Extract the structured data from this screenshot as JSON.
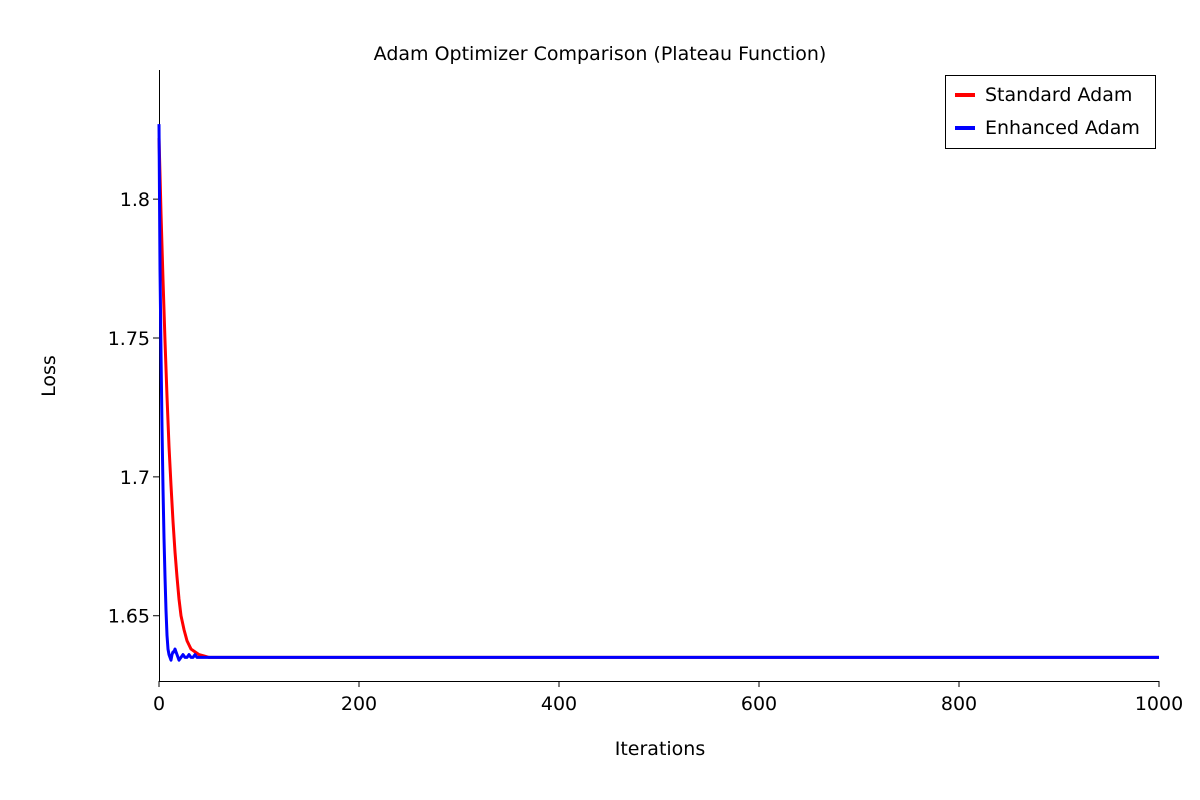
{
  "chart_data": {
    "type": "line",
    "title": "Adam Optimizer Comparison (Plateau Function)",
    "xlabel": "Iterations",
    "ylabel": "Loss",
    "xlim": [
      0,
      1000
    ],
    "ylim": [
      1.6265,
      1.8465
    ],
    "xticks": [
      0,
      200,
      400,
      600,
      800,
      1000
    ],
    "xtick_labels": [
      "0",
      "200",
      "400",
      "600",
      "800",
      "1000"
    ],
    "yticks": [
      1.65,
      1.7,
      1.75,
      1.8
    ],
    "ytick_labels": [
      "1.65",
      "1.7",
      "1.75",
      "1.8"
    ],
    "grid": false,
    "legend_position": "top-right",
    "series": [
      {
        "name": "Standard Adam",
        "color": "#ff0000",
        "x": [
          0,
          1,
          2,
          3,
          4,
          5,
          6,
          7,
          8,
          9,
          10,
          12,
          14,
          16,
          18,
          20,
          22,
          25,
          28,
          32,
          36,
          40,
          45,
          50,
          60,
          80,
          100,
          200,
          400,
          600,
          800,
          1000
        ],
        "y": [
          1.822,
          1.809,
          1.795,
          1.783,
          1.771,
          1.76,
          1.749,
          1.739,
          1.729,
          1.72,
          1.711,
          1.697,
          1.684,
          1.673,
          1.664,
          1.656,
          1.65,
          1.645,
          1.641,
          1.638,
          1.637,
          1.636,
          1.6355,
          1.635,
          1.635,
          1.635,
          1.635,
          1.635,
          1.635,
          1.635,
          1.635,
          1.635
        ]
      },
      {
        "name": "Enhanced Adam",
        "color": "#0000ff",
        "x": [
          0,
          1,
          2,
          3,
          4,
          5,
          6,
          7,
          8,
          9,
          10,
          11,
          12,
          13,
          14,
          15,
          16,
          17,
          18,
          19,
          20,
          22,
          24,
          26,
          28,
          30,
          32,
          34,
          36,
          38,
          40,
          44,
          48,
          60,
          100,
          200,
          400,
          600,
          800,
          1000
        ],
        "y": [
          1.827,
          1.775,
          1.745,
          1.718,
          1.696,
          1.678,
          1.664,
          1.652,
          1.643,
          1.638,
          1.636,
          1.635,
          1.634,
          1.636,
          1.637,
          1.637,
          1.638,
          1.637,
          1.636,
          1.635,
          1.634,
          1.635,
          1.636,
          1.635,
          1.635,
          1.636,
          1.635,
          1.635,
          1.636,
          1.635,
          1.635,
          1.635,
          1.635,
          1.635,
          1.635,
          1.635,
          1.635,
          1.635,
          1.635,
          1.635
        ]
      }
    ]
  }
}
